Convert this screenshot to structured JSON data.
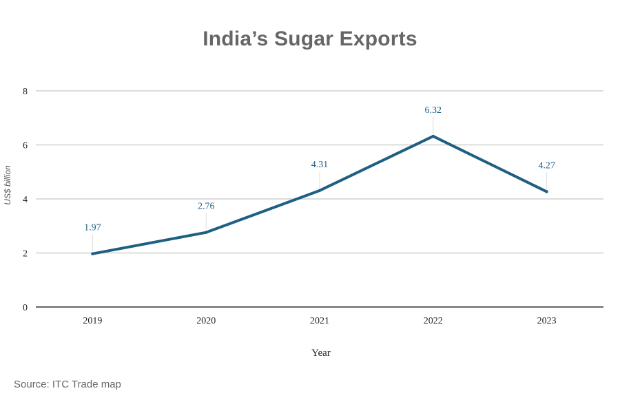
{
  "title": "India’s Sugar Exports",
  "source": "Source: ITC Trade map",
  "colors": {
    "line": "#1e5f82",
    "label": "#1f5c85",
    "grid": "#d0d0d0",
    "axis": "#333333",
    "title": "#666666"
  },
  "chart_data": {
    "type": "line",
    "categories": [
      "2019",
      "2020",
      "2021",
      "2022",
      "2023"
    ],
    "series": [
      {
        "values": [
          1.97,
          2.76,
          4.31,
          6.32,
          4.27
        ],
        "labels": [
          "1.97",
          "2.76",
          "4.31",
          "6.32",
          "4.27"
        ]
      }
    ],
    "xlabel": "Year",
    "ylabel": "US$ billion",
    "ylim": [
      0,
      8
    ],
    "yticks": [
      "0",
      "2",
      "4",
      "6",
      "8"
    ],
    "grid": true,
    "legend": "none"
  }
}
